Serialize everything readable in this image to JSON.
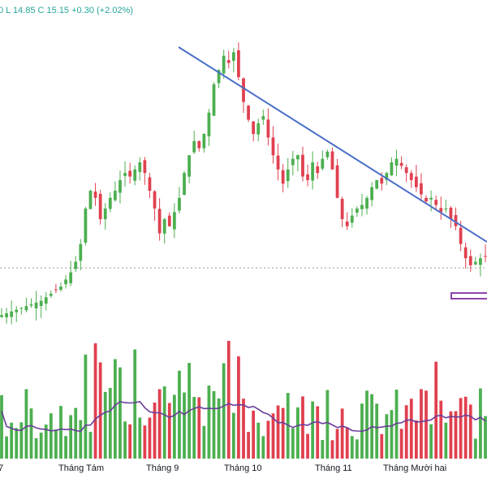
{
  "header": {
    "ohlc_text": "0  L 14.85  C 15.15  +0.30 (+2.02%)"
  },
  "colors": {
    "up": "#4caf50",
    "down": "#e0404f",
    "trendline": "#4a6fc8",
    "volume_ma": "#6a3d9a",
    "support_box": "#8e44ad",
    "dotted_line": "#9e9e9e"
  },
  "chart_data": {
    "type": "candlestick",
    "title": "",
    "xlabel": "",
    "ylabel": "",
    "x_tick_labels": [
      "7",
      "Tháng Tám",
      "Tháng 9",
      "Tháng 10",
      "Tháng 11",
      "Tháng Mười hai"
    ],
    "grid": false,
    "last_close": 15.15,
    "last_change": 0.3,
    "last_change_pct": 2.02,
    "last_low": 14.85,
    "price_range_estimate": [
      13.0,
      21.0
    ],
    "closes_estimate": [
      13.5,
      13.55,
      13.6,
      13.65,
      13.7,
      13.75,
      13.8,
      13.85,
      13.9,
      14.0,
      14.1,
      14.2,
      14.3,
      14.5,
      14.7,
      15.0,
      15.5,
      16.5,
      17.0,
      16.8,
      16.2,
      16.5,
      16.8,
      17.0,
      17.3,
      17.5,
      17.4,
      17.6,
      17.8,
      17.5,
      17.0,
      16.5,
      15.8,
      16.2,
      16.0,
      16.4,
      16.8,
      17.5,
      18.0,
      18.4,
      18.2,
      18.6,
      19.2,
      20.0,
      20.4,
      20.8,
      20.6,
      20.9,
      20.2,
      19.5,
      19.0,
      18.6,
      18.9,
      19.1,
      18.5,
      18.0,
      17.6,
      17.2,
      17.6,
      17.9,
      18.0,
      17.4,
      17.3,
      17.8,
      17.5,
      17.9,
      18.1,
      17.6,
      16.8,
      16.2,
      16.0,
      16.3,
      16.5,
      16.6,
      16.8,
      17.1,
      17.3,
      17.2,
      17.5,
      17.8,
      17.9,
      17.7,
      17.5,
      17.3,
      17.1,
      16.9,
      16.7,
      16.8,
      16.6,
      16.4,
      16.5,
      16.2,
      16.0,
      15.5,
      15.1,
      14.9,
      15.0,
      15.1,
      15.15
    ],
    "series": [
      {
        "name": "",
        "type": "trendline",
        "points": [
          [
            "Tháng Tám end",
            20.8
          ],
          [
            "Tháng Mười hai end",
            16.6
          ]
        ]
      },
      {
        "name": "",
        "type": "volume_moving_average"
      }
    ],
    "annotations": [
      "support rectangle near 15.0",
      "dotted horizontal line at last price"
    ]
  }
}
